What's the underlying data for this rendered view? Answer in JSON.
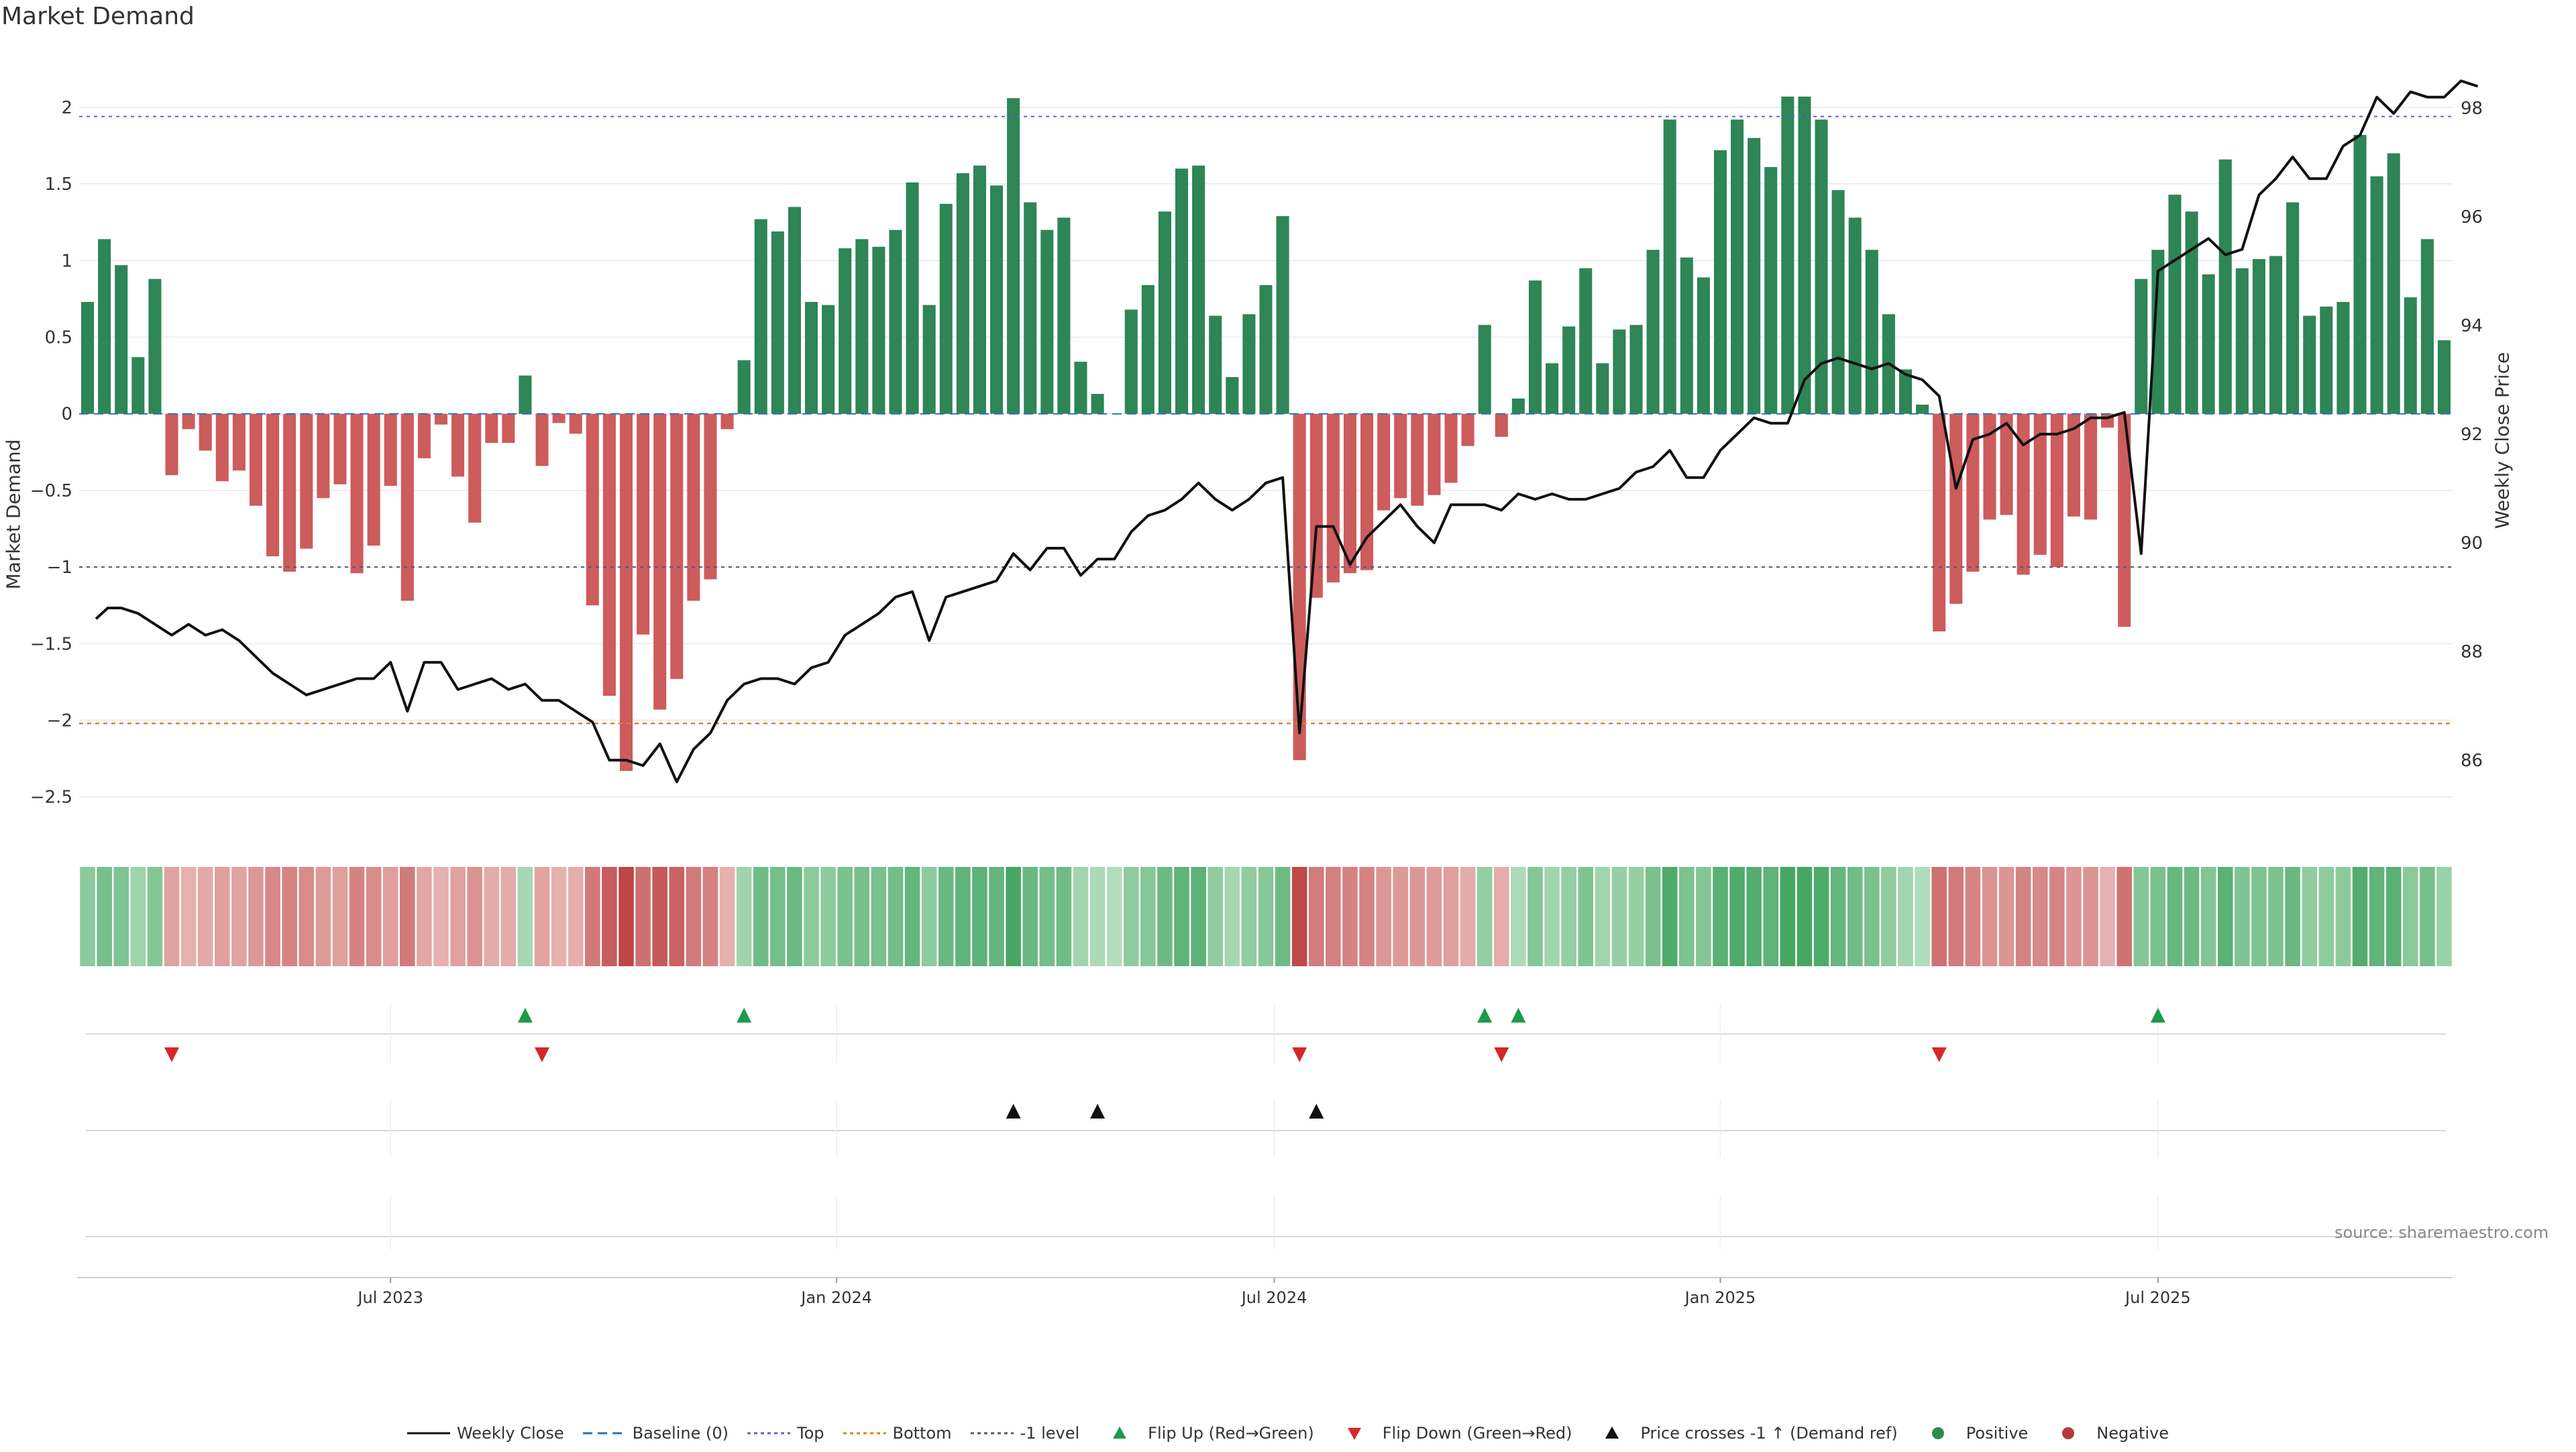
{
  "chart_data": {
    "type": "bar",
    "title": "Market Demand",
    "ylabel": "Market Demand",
    "y2label": "Weekly Close Price",
    "ylim": [
      -2.65,
      2.35
    ],
    "y2lim": [
      84.9,
      99.0
    ],
    "yticks": [
      2,
      1.5,
      1,
      0.5,
      0,
      -0.5,
      -1,
      -1.5,
      -2,
      -2.5
    ],
    "ytick_labels": [
      "2",
      "1.5",
      "1",
      "0.5",
      "0",
      "−0.5",
      "−1",
      "−1.5",
      "−2",
      "−2.5"
    ],
    "y2ticks": [
      98,
      96,
      94,
      92,
      90,
      88,
      86
    ],
    "y2tick_labels": [
      "98",
      "96",
      "94",
      "92",
      "90",
      "88",
      "86"
    ],
    "reference_lines": {
      "top": 1.94,
      "bottom": -2.02,
      "minus1": -1.0,
      "baseline": 0
    },
    "x_start_index": 0,
    "xtick_labels": [
      {
        "label": "Jul 2023",
        "index": 18
      },
      {
        "label": "Jan 2024",
        "index": 44.5
      },
      {
        "label": "Jul 2024",
        "index": 70.5
      },
      {
        "label": "Jan 2025",
        "index": 97
      },
      {
        "label": "Jul 2025",
        "index": 123
      }
    ],
    "demand": [
      0.73,
      1.14,
      0.97,
      0.37,
      0.88,
      -0.4,
      -0.1,
      -0.24,
      -0.44,
      -0.37,
      -0.6,
      -0.93,
      -1.03,
      -0.88,
      -0.55,
      -0.46,
      -1.04,
      -0.86,
      -0.47,
      -1.22,
      -0.29,
      -0.07,
      -0.41,
      -0.71,
      -0.19,
      -0.19,
      0.25,
      -0.34,
      -0.06,
      -0.13,
      -1.25,
      -1.84,
      -2.33,
      -1.44,
      -1.93,
      -1.73,
      -1.22,
      -1.08,
      -0.1,
      0.35,
      1.27,
      1.19,
      1.35,
      0.73,
      0.71,
      1.08,
      1.14,
      1.09,
      1.2,
      1.51,
      0.71,
      1.37,
      1.57,
      1.62,
      1.49,
      2.06,
      1.38,
      1.2,
      1.28,
      0.34,
      0.13,
      0.0,
      0.68,
      0.84,
      1.32,
      1.6,
      1.62,
      0.64,
      0.24,
      0.65,
      0.84,
      1.29,
      -2.26,
      -1.2,
      -1.1,
      -1.04,
      -1.02,
      -0.63,
      -0.55,
      -0.6,
      -0.53,
      -0.45,
      -0.21,
      0.58,
      -0.15,
      0.1,
      0.87,
      0.33,
      0.57,
      0.95,
      0.33,
      0.55,
      0.58,
      1.07,
      1.92,
      1.02,
      0.89,
      1.72,
      1.92,
      1.8,
      1.61,
      2.07,
      2.07,
      1.92,
      1.46,
      1.28,
      1.07,
      0.65,
      0.29,
      0.06,
      -1.42,
      -1.24,
      -1.03,
      -0.69,
      -0.66,
      -1.05,
      -0.92,
      -1.0,
      -0.67,
      -0.69,
      -0.09,
      -1.39,
      0.88,
      1.07,
      1.43,
      1.32,
      0.91,
      1.66,
      0.95,
      1.01,
      1.03,
      1.38,
      0.64,
      0.7,
      0.73,
      1.82,
      1.55,
      1.7,
      0.76,
      1.14,
      0.48
    ],
    "price_series": [
      [
        0.5,
        88.6
      ],
      [
        1.2,
        88.8
      ],
      [
        2,
        88.8
      ],
      [
        3,
        88.7
      ],
      [
        4,
        88.5
      ],
      [
        5,
        88.3
      ],
      [
        6,
        88.5
      ],
      [
        7,
        88.3
      ],
      [
        8,
        88.4
      ],
      [
        9,
        88.2
      ],
      [
        10,
        87.9
      ],
      [
        11,
        87.6
      ],
      [
        12,
        87.4
      ],
      [
        13,
        87.2
      ],
      [
        14,
        87.3
      ],
      [
        15,
        87.4
      ],
      [
        16,
        87.5
      ],
      [
        17,
        87.5
      ],
      [
        18,
        87.8
      ],
      [
        19,
        86.9
      ],
      [
        20,
        87.8
      ],
      [
        21,
        87.8
      ],
      [
        22,
        87.3
      ],
      [
        23,
        87.4
      ],
      [
        24,
        87.5
      ],
      [
        25,
        87.3
      ],
      [
        26,
        87.4
      ],
      [
        27,
        87.1
      ],
      [
        28,
        87.1
      ],
      [
        29,
        86.9
      ],
      [
        30,
        86.7
      ],
      [
        31,
        86.0
      ],
      [
        32,
        86.0
      ],
      [
        33,
        85.9
      ],
      [
        34,
        86.3
      ],
      [
        35,
        85.6
      ],
      [
        36,
        86.2
      ],
      [
        37,
        86.5
      ],
      [
        38,
        87.1
      ],
      [
        39,
        87.4
      ],
      [
        40,
        87.5
      ],
      [
        41,
        87.5
      ],
      [
        42,
        87.4
      ],
      [
        43,
        87.7
      ],
      [
        44,
        87.8
      ],
      [
        45,
        88.3
      ],
      [
        46,
        88.5
      ],
      [
        47,
        88.7
      ],
      [
        48,
        89.0
      ],
      [
        49,
        89.1
      ],
      [
        50,
        88.2
      ],
      [
        51,
        89.0
      ],
      [
        52,
        89.1
      ],
      [
        53,
        89.2
      ],
      [
        54,
        89.3
      ],
      [
        55,
        89.8
      ],
      [
        56,
        89.5
      ],
      [
        57,
        89.9
      ],
      [
        58,
        89.9
      ],
      [
        59,
        89.4
      ],
      [
        60,
        89.7
      ],
      [
        61,
        89.7
      ],
      [
        62,
        90.2
      ],
      [
        63,
        90.5
      ],
      [
        64,
        90.6
      ],
      [
        65,
        90.8
      ],
      [
        66,
        91.1
      ],
      [
        67,
        90.8
      ],
      [
        68,
        90.6
      ],
      [
        69,
        90.8
      ],
      [
        70,
        91.1
      ],
      [
        71,
        91.2
      ],
      [
        72,
        86.5
      ],
      [
        73,
        90.3
      ],
      [
        74,
        90.3
      ],
      [
        75,
        89.6
      ],
      [
        76,
        90.1
      ],
      [
        77,
        90.4
      ],
      [
        78,
        90.7
      ],
      [
        79,
        90.3
      ],
      [
        80,
        90.0
      ],
      [
        81,
        90.7
      ],
      [
        82,
        90.7
      ],
      [
        83,
        90.7
      ],
      [
        84,
        90.6
      ],
      [
        85,
        90.9
      ],
      [
        86,
        90.8
      ],
      [
        87,
        90.9
      ],
      [
        88,
        90.8
      ],
      [
        89,
        90.8
      ],
      [
        90,
        90.9
      ],
      [
        91,
        91.0
      ],
      [
        92,
        91.3
      ],
      [
        93,
        91.4
      ],
      [
        94,
        91.7
      ],
      [
        95,
        91.2
      ],
      [
        96,
        91.2
      ],
      [
        97,
        91.7
      ],
      [
        98,
        92.0
      ],
      [
        99,
        92.3
      ],
      [
        100,
        92.2
      ],
      [
        101,
        92.2
      ],
      [
        102,
        93.0
      ],
      [
        103,
        93.3
      ],
      [
        104,
        93.4
      ],
      [
        105,
        93.3
      ],
      [
        106,
        93.2
      ],
      [
        107,
        93.3
      ],
      [
        108,
        93.1
      ],
      [
        109,
        93.0
      ],
      [
        110,
        92.7
      ],
      [
        111,
        91.0
      ],
      [
        112,
        91.9
      ],
      [
        113,
        92.0
      ],
      [
        114,
        92.2
      ],
      [
        115,
        91.8
      ],
      [
        116,
        92.0
      ],
      [
        117,
        92.0
      ],
      [
        118,
        92.1
      ],
      [
        119,
        92.3
      ],
      [
        120,
        92.3
      ],
      [
        121,
        92.4
      ],
      [
        122,
        89.8
      ],
      [
        123,
        95.0
      ],
      [
        124,
        95.2
      ],
      [
        125,
        95.4
      ],
      [
        126,
        95.6
      ],
      [
        127,
        95.3
      ],
      [
        128,
        95.4
      ],
      [
        129,
        96.4
      ],
      [
        130,
        96.7
      ],
      [
        131,
        97.1
      ],
      [
        132,
        96.7
      ],
      [
        133,
        96.7
      ],
      [
        134,
        97.3
      ],
      [
        135,
        97.5
      ],
      [
        136,
        98.2
      ],
      [
        137,
        97.9
      ],
      [
        138,
        98.3
      ],
      [
        139,
        98.2
      ],
      [
        140,
        98.2
      ],
      [
        141,
        98.5
      ],
      [
        142,
        98.4
      ]
    ],
    "signals": {
      "flip_up": [
        26,
        39,
        83,
        85,
        123
      ],
      "flip_down": [
        5,
        27,
        72,
        84,
        110
      ],
      "price_cross": [
        55,
        60,
        73
      ]
    },
    "legend": [
      {
        "label": "Weekly Close",
        "kind": "line",
        "color": "#111111"
      },
      {
        "label": "Baseline (0)",
        "kind": "dash",
        "color": "#1f77b4"
      },
      {
        "label": "Top",
        "kind": "dot",
        "color": "#6b5bd2"
      },
      {
        "label": "Bottom",
        "kind": "dot",
        "color": "#e67e22"
      },
      {
        "label": "-1 level",
        "kind": "dot",
        "color": "#555577"
      },
      {
        "label": "Flip Up (Red→Green)",
        "kind": "tri-up",
        "color": "#1a9c4a"
      },
      {
        "label": "Flip Down (Green→Red)",
        "kind": "tri-down",
        "color": "#d62728"
      },
      {
        "label": "Price crosses -1 ↑ (Demand ref)",
        "kind": "tri-up",
        "color": "#111111"
      },
      {
        "label": "Positive",
        "kind": "circle",
        "color": "#2e8b4f"
      },
      {
        "label": "Negative",
        "kind": "circle",
        "color": "#b5393a"
      }
    ],
    "source": "source: sharemaestro.com"
  },
  "colors": {
    "positive_bar": "#2e8555",
    "negative_bar": "#cd5c5c",
    "price_line": "#111111",
    "grid": "#e8e8e8",
    "axis_text": "#333333"
  }
}
